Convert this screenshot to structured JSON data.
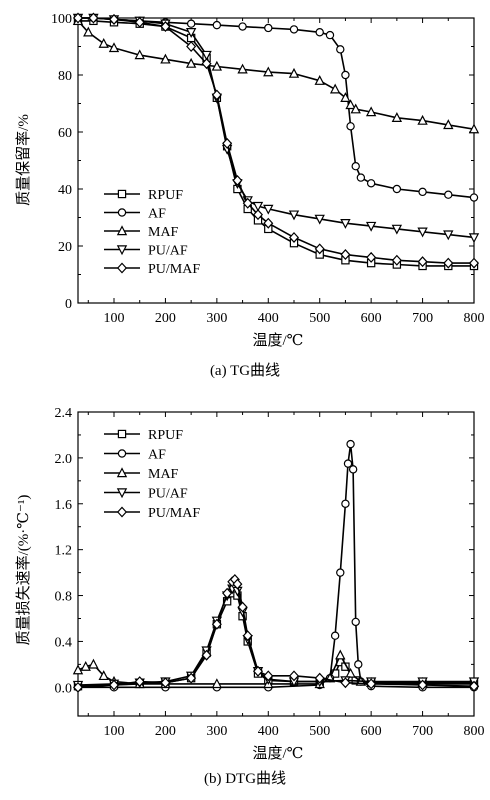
{
  "chart_data": [
    {
      "type": "line",
      "panel_caption": "(a) TG曲线",
      "xlabel": "温度/℃",
      "ylabel": "质量保留率/%",
      "xlim": [
        30,
        800
      ],
      "ylim": [
        0,
        100
      ],
      "xticks": [
        100,
        200,
        300,
        400,
        500,
        600,
        700,
        800
      ],
      "yticks": [
        0,
        20,
        40,
        60,
        80,
        100
      ],
      "grid": false,
      "legend_position": "bottom-left",
      "series": [
        {
          "name": "RPUF",
          "marker": "square",
          "x": [
            30,
            60,
            100,
            150,
            200,
            250,
            280,
            300,
            320,
            340,
            360,
            380,
            400,
            450,
            500,
            550,
            600,
            650,
            700,
            750,
            800
          ],
          "y": [
            99,
            99,
            98.5,
            98,
            97,
            93,
            86,
            72,
            55,
            40,
            33,
            29,
            26,
            21,
            17,
            15,
            14,
            13.5,
            13,
            13,
            13
          ]
        },
        {
          "name": "AF",
          "marker": "circle",
          "x": [
            30,
            60,
            100,
            150,
            200,
            250,
            300,
            350,
            400,
            450,
            500,
            520,
            540,
            550,
            560,
            570,
            580,
            600,
            650,
            700,
            750,
            800
          ],
          "y": [
            100,
            100,
            99.5,
            99,
            98.5,
            98,
            97.5,
            97,
            96.5,
            96,
            95,
            94,
            89,
            80,
            62,
            48,
            44,
            42,
            40,
            39,
            38,
            37
          ]
        },
        {
          "name": "MAF",
          "marker": "triangle-up",
          "x": [
            30,
            50,
            80,
            100,
            150,
            200,
            250,
            300,
            350,
            400,
            450,
            500,
            530,
            550,
            560,
            570,
            600,
            650,
            700,
            750,
            800
          ],
          "y": [
            99,
            95,
            91,
            89.5,
            87,
            85.5,
            84,
            83,
            82,
            81,
            80.5,
            78,
            75,
            72,
            69.5,
            68,
            67,
            65,
            64,
            62.5,
            61
          ]
        },
        {
          "name": "PU/AF",
          "marker": "triangle-down",
          "x": [
            30,
            60,
            100,
            150,
            200,
            250,
            280,
            300,
            320,
            340,
            360,
            380,
            400,
            450,
            500,
            550,
            600,
            650,
            700,
            750,
            800
          ],
          "y": [
            100,
            100,
            99.5,
            99,
            98,
            95,
            87,
            72,
            54,
            42,
            36,
            34,
            33,
            31,
            29.5,
            28,
            27,
            26,
            25,
            24,
            23
          ]
        },
        {
          "name": "PU/MAF",
          "marker": "diamond",
          "x": [
            30,
            60,
            100,
            150,
            200,
            250,
            280,
            300,
            320,
            340,
            360,
            380,
            400,
            450,
            500,
            550,
            600,
            650,
            700,
            750,
            800
          ],
          "y": [
            100,
            100,
            99.5,
            98.5,
            97,
            90,
            84,
            73,
            56,
            43,
            35,
            31,
            28,
            23,
            19,
            17,
            16,
            15,
            14.5,
            14,
            14
          ]
        }
      ]
    },
    {
      "type": "line",
      "panel_caption": "(b) DTG曲线",
      "xlabel": "温度/℃",
      "ylabel": "质量损失速率/(%·℃⁻¹)",
      "xlim": [
        30,
        800
      ],
      "ylim": [
        -0.25,
        2.4
      ],
      "xticks": [
        100,
        200,
        300,
        400,
        500,
        600,
        700,
        800
      ],
      "yticks": [
        0.0,
        0.4,
        0.8,
        1.2,
        1.6,
        2.0,
        2.4
      ],
      "grid": false,
      "legend_position": "top-left",
      "series": [
        {
          "name": "RPUF",
          "marker": "square",
          "x": [
            30,
            100,
            150,
            200,
            250,
            280,
            300,
            320,
            330,
            340,
            350,
            360,
            380,
            400,
            450,
            500,
            530,
            540,
            550,
            570,
            600,
            700,
            800
          ],
          "y": [
            0.01,
            0.02,
            0.03,
            0.04,
            0.08,
            0.3,
            0.55,
            0.75,
            0.82,
            0.8,
            0.62,
            0.4,
            0.12,
            0.06,
            0.05,
            0.05,
            0.12,
            0.22,
            0.18,
            0.06,
            0.04,
            0.03,
            0.03
          ]
        },
        {
          "name": "AF",
          "marker": "circle",
          "x": [
            30,
            100,
            200,
            300,
            400,
            500,
            520,
            530,
            540,
            550,
            555,
            560,
            565,
            570,
            575,
            580,
            600,
            700,
            800
          ],
          "y": [
            0.0,
            0.0,
            0.0,
            0.0,
            0.0,
            0.02,
            0.08,
            0.45,
            1.0,
            1.6,
            1.95,
            2.12,
            1.9,
            0.57,
            0.2,
            0.05,
            0.01,
            0.0,
            0.0
          ]
        },
        {
          "name": "MAF",
          "marker": "triangle-up",
          "x": [
            30,
            45,
            60,
            80,
            100,
            150,
            200,
            300,
            400,
            500,
            520,
            540,
            560,
            580,
            600,
            700,
            800
          ],
          "y": [
            0.15,
            0.18,
            0.2,
            0.1,
            0.05,
            0.03,
            0.03,
            0.03,
            0.03,
            0.03,
            0.08,
            0.28,
            0.12,
            0.05,
            0.04,
            0.04,
            0.04
          ]
        },
        {
          "name": "PU/AF",
          "marker": "triangle-down",
          "x": [
            30,
            100,
            150,
            200,
            250,
            280,
            300,
            320,
            330,
            340,
            350,
            360,
            380,
            400,
            450,
            500,
            550,
            600,
            700,
            800
          ],
          "y": [
            0.02,
            0.03,
            0.04,
            0.05,
            0.1,
            0.32,
            0.58,
            0.8,
            0.86,
            0.84,
            0.66,
            0.42,
            0.14,
            0.07,
            0.05,
            0.05,
            0.06,
            0.05,
            0.05,
            0.05
          ]
        },
        {
          "name": "PU/MAF",
          "marker": "diamond",
          "x": [
            30,
            100,
            150,
            200,
            250,
            280,
            300,
            320,
            330,
            335,
            340,
            350,
            360,
            380,
            400,
            450,
            500,
            550,
            600,
            700,
            800
          ],
          "y": [
            0.0,
            0.02,
            0.05,
            0.04,
            0.08,
            0.28,
            0.55,
            0.82,
            0.92,
            0.94,
            0.9,
            0.7,
            0.45,
            0.14,
            0.1,
            0.1,
            0.08,
            0.04,
            0.03,
            0.02,
            0.01
          ]
        }
      ]
    }
  ]
}
